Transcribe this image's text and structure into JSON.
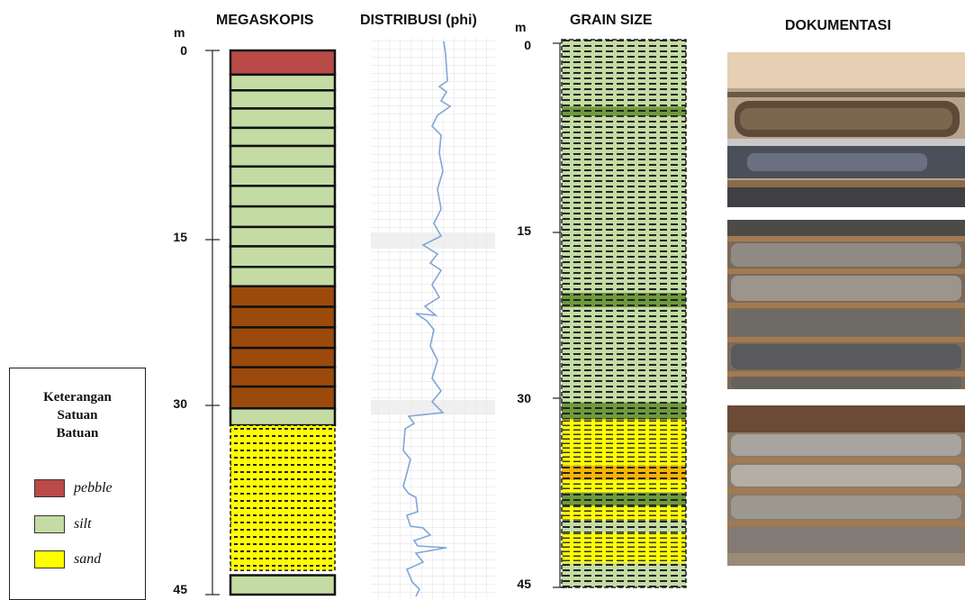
{
  "headers": {
    "megaskopis": "MEGASKOPIS",
    "distribusi": "DISTRIBUSI (phi)",
    "grain_size": "GRAIN SIZE",
    "dokumentasi": "DOKUMENTASI"
  },
  "depth_unit": "m",
  "depth_ticks": [
    "0",
    "15",
    "30",
    "45"
  ],
  "legend": {
    "title_lines": [
      "Keterangan",
      "Satuan",
      "Batuan"
    ],
    "items": [
      {
        "label": "pebble",
        "color": "#b94a48"
      },
      {
        "label": "silt",
        "color": "#c4dca3"
      },
      {
        "label": "sand",
        "color": "#ffff00"
      }
    ]
  },
  "colors": {
    "pebble": "#b94a48",
    "silt": "#c4dca3",
    "clay_brown": "#9c4a0c",
    "sand": "#ffff00",
    "distribution_line": "#7fa6d6",
    "grain_dark_green": "#6e9a3c"
  },
  "megaskopis_layers": [
    {
      "type": "pebble",
      "from": 0,
      "to": 2
    },
    {
      "type": "silt",
      "from": 2,
      "to": 3.3
    },
    {
      "type": "silt",
      "from": 3.3,
      "to": 4.8
    },
    {
      "type": "silt",
      "from": 4.8,
      "to": 6.4
    },
    {
      "type": "silt",
      "from": 6.4,
      "to": 7.9
    },
    {
      "type": "silt",
      "from": 7.9,
      "to": 9.6
    },
    {
      "type": "silt",
      "from": 9.6,
      "to": 11.2
    },
    {
      "type": "silt",
      "from": 11.2,
      "to": 12.9
    },
    {
      "type": "silt",
      "from": 12.9,
      "to": 14.6
    },
    {
      "type": "silt",
      "from": 14.6,
      "to": 16.2
    },
    {
      "type": "silt",
      "from": 16.2,
      "to": 17.9
    },
    {
      "type": "silt",
      "from": 17.9,
      "to": 19.5
    },
    {
      "type": "clay_brown",
      "from": 19.5,
      "to": 21.2
    },
    {
      "type": "clay_brown",
      "from": 21.2,
      "to": 22.9
    },
    {
      "type": "clay_brown",
      "from": 22.9,
      "to": 24.6
    },
    {
      "type": "clay_brown",
      "from": 24.6,
      "to": 26.2
    },
    {
      "type": "clay_brown",
      "from": 26.2,
      "to": 27.8
    },
    {
      "type": "clay_brown",
      "from": 27.8,
      "to": 29.6
    },
    {
      "type": "silt",
      "from": 29.6,
      "to": 31.0
    },
    {
      "type": "sand",
      "from": 31.0,
      "to": 43.0
    },
    {
      "type": "silt",
      "from": 43.4,
      "to": 45.0
    }
  ],
  "grain_layers": [
    {
      "type": "silt",
      "from": 0,
      "to": 5.5
    },
    {
      "type": "dark_green",
      "from": 5.5,
      "to": 6.3
    },
    {
      "type": "silt",
      "from": 6.3,
      "to": 20.8
    },
    {
      "type": "dark_green",
      "from": 20.8,
      "to": 22.0
    },
    {
      "type": "silt",
      "from": 22.0,
      "to": 29.8
    },
    {
      "type": "dark_green",
      "from": 29.8,
      "to": 31.2
    },
    {
      "type": "sand",
      "from": 31.2,
      "to": 35.0
    },
    {
      "type": "orange",
      "from": 35.0,
      "to": 36.2
    },
    {
      "type": "sand",
      "from": 36.2,
      "to": 37.2
    },
    {
      "type": "dark_green",
      "from": 37.2,
      "to": 38.3
    },
    {
      "type": "sand",
      "from": 38.3,
      "to": 39.5
    },
    {
      "type": "silt",
      "from": 39.5,
      "to": 40.5
    },
    {
      "type": "sand",
      "from": 40.5,
      "to": 43.0
    },
    {
      "type": "silt",
      "from": 43.0,
      "to": 45.0
    }
  ]
}
